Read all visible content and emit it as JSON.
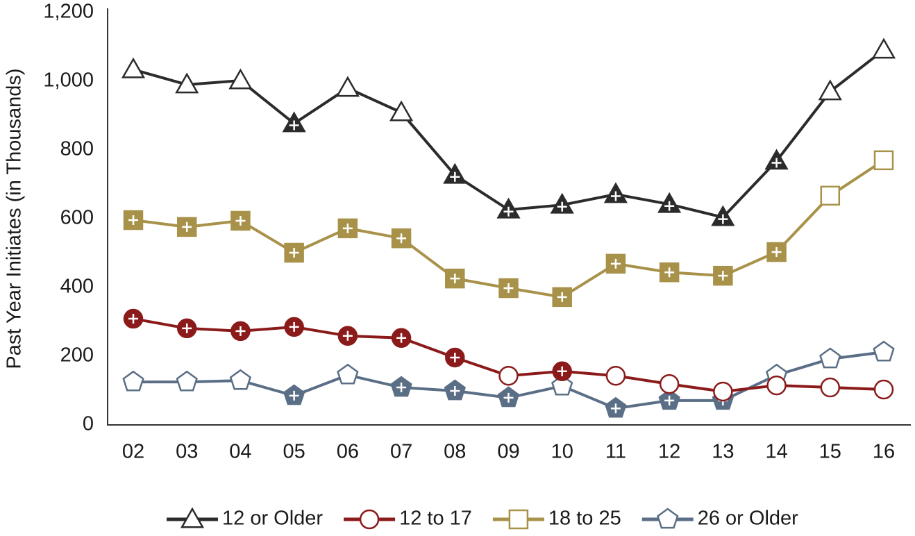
{
  "chart_data": {
    "type": "line",
    "y_label": "Past Year Initiates (in Thousands)",
    "categories": [
      "02",
      "03",
      "04",
      "05",
      "06",
      "07",
      "08",
      "09",
      "10",
      "11",
      "12",
      "13",
      "14",
      "15",
      "16"
    ],
    "ylim": [
      0,
      1200
    ],
    "yticks": [
      0,
      200,
      400,
      600,
      800,
      {
        "value": 1000,
        "label": "1,000"
      },
      {
        "value": 1200,
        "label": "1,200"
      }
    ],
    "grid": false,
    "legend": "bottom",
    "series": [
      {
        "name": "12 or Older",
        "color": "#2b2b2b",
        "marker": "triangle",
        "values": [
          1034,
          990,
          1002,
          877,
          980,
          909,
          727,
          626,
          640,
          671,
          642,
          604,
          768,
          970,
          1091
        ],
        "markers_filled": [
          false,
          false,
          false,
          true,
          false,
          false,
          true,
          true,
          true,
          true,
          true,
          true,
          true,
          false,
          false
        ]
      },
      {
        "name": "12 to 17",
        "color": "#8b1a1a",
        "marker": "circle",
        "values": [
          309,
          281,
          273,
          285,
          259,
          253,
          196,
          143,
          156,
          143,
          119,
          97,
          115,
          109,
          103
        ],
        "markers_filled": [
          true,
          true,
          true,
          true,
          true,
          true,
          true,
          false,
          true,
          false,
          false,
          false,
          false,
          false,
          false
        ]
      },
      {
        "name": "18 to 25",
        "color": "#a8924a",
        "marker": "square",
        "values": [
          596,
          576,
          594,
          501,
          572,
          543,
          426,
          398,
          372,
          469,
          444,
          434,
          503,
          667,
          770
        ],
        "markers_filled": [
          true,
          true,
          true,
          true,
          true,
          true,
          true,
          true,
          true,
          true,
          true,
          true,
          true,
          false,
          false
        ]
      },
      {
        "name": "26 or Older",
        "color": "#5a6e86",
        "marker": "pentagon",
        "values": [
          125,
          125,
          129,
          85,
          145,
          109,
          99,
          79,
          113,
          48,
          71,
          71,
          145,
          192,
          212
        ],
        "markers_filled": [
          false,
          false,
          false,
          true,
          false,
          true,
          true,
          true,
          false,
          true,
          true,
          true,
          false,
          false,
          false
        ]
      }
    ]
  }
}
